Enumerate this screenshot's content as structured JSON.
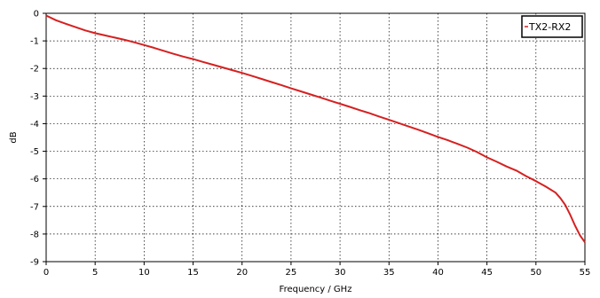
{
  "chart_data": {
    "type": "line",
    "title": "",
    "xlabel": "Frequency / GHz",
    "ylabel": "dB",
    "xlim": [
      0,
      55
    ],
    "ylim": [
      -9,
      0
    ],
    "x_ticks": [
      "0",
      "5",
      "10",
      "15",
      "20",
      "25",
      "30",
      "35",
      "40",
      "45",
      "50",
      "55"
    ],
    "y_ticks": [
      "0",
      "-1",
      "-2",
      "-3",
      "-4",
      "-5",
      "-6",
      "-7",
      "-8",
      "-9"
    ],
    "grid": true,
    "legend_position": "top-right",
    "series": [
      {
        "name": "TX2-RX2",
        "color": "#d62020",
        "x": [
          0,
          1,
          2,
          3,
          4,
          5,
          6,
          7,
          8,
          9,
          10,
          11,
          12,
          13,
          14,
          15,
          16,
          17,
          18,
          19,
          20,
          21,
          22,
          23,
          24,
          25,
          26,
          27,
          28,
          29,
          30,
          31,
          32,
          33,
          34,
          35,
          36,
          37,
          38,
          39,
          40,
          41,
          42,
          43,
          44,
          45,
          46,
          47,
          48,
          49,
          50,
          51,
          52,
          52.5,
          53,
          53.5,
          54,
          54.5,
          55
        ],
        "y": [
          -0.08,
          -0.25,
          -0.38,
          -0.5,
          -0.62,
          -0.72,
          -0.8,
          -0.88,
          -0.96,
          -1.05,
          -1.15,
          -1.25,
          -1.36,
          -1.47,
          -1.57,
          -1.66,
          -1.76,
          -1.86,
          -1.96,
          -2.06,
          -2.16,
          -2.27,
          -2.38,
          -2.49,
          -2.6,
          -2.72,
          -2.83,
          -2.94,
          -3.05,
          -3.17,
          -3.28,
          -3.39,
          -3.51,
          -3.62,
          -3.74,
          -3.86,
          -3.98,
          -4.1,
          -4.22,
          -4.35,
          -4.48,
          -4.6,
          -4.73,
          -4.87,
          -5.03,
          -5.22,
          -5.38,
          -5.55,
          -5.7,
          -5.9,
          -6.08,
          -6.28,
          -6.5,
          -6.7,
          -6.95,
          -7.3,
          -7.7,
          -8.05,
          -8.3
        ]
      }
    ]
  }
}
